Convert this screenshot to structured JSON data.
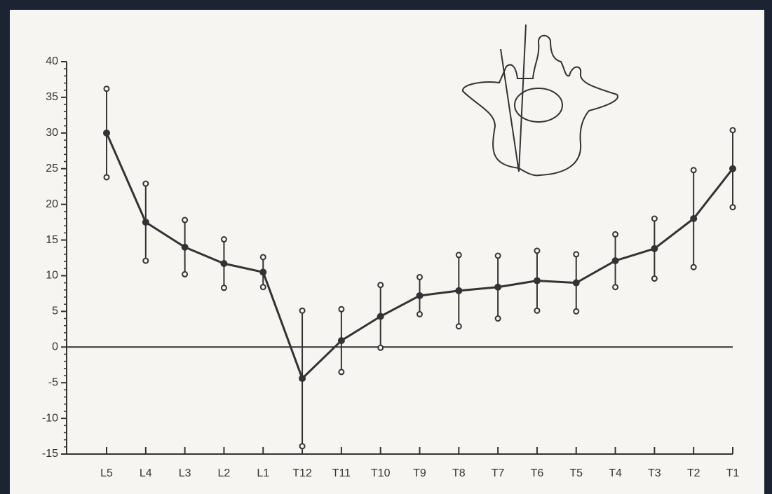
{
  "chart_data": {
    "type": "line",
    "categories": [
      "L5",
      "L4",
      "L3",
      "L2",
      "L1",
      "T12",
      "T11",
      "T10",
      "T9",
      "T8",
      "T7",
      "T6",
      "T5",
      "T4",
      "T3",
      "T2",
      "T1"
    ],
    "values": [
      30,
      17.5,
      14,
      11.7,
      10.5,
      -4.4,
      0.9,
      4.3,
      7.2,
      7.9,
      8.4,
      9.3,
      9,
      12.1,
      13.8,
      18,
      25
    ],
    "errors": [
      6.2,
      5.4,
      3.8,
      3.4,
      2.1,
      9.5,
      4.4,
      4.4,
      2.6,
      5,
      4.4,
      4.2,
      4,
      3.7,
      4.2,
      6.8,
      5.4
    ],
    "color": "#333333",
    "ylim": [
      -15,
      40
    ],
    "yticks": [
      -15,
      -10,
      -5,
      0,
      5,
      10,
      15,
      20,
      25,
      30,
      35,
      40
    ],
    "zero_line": true
  }
}
